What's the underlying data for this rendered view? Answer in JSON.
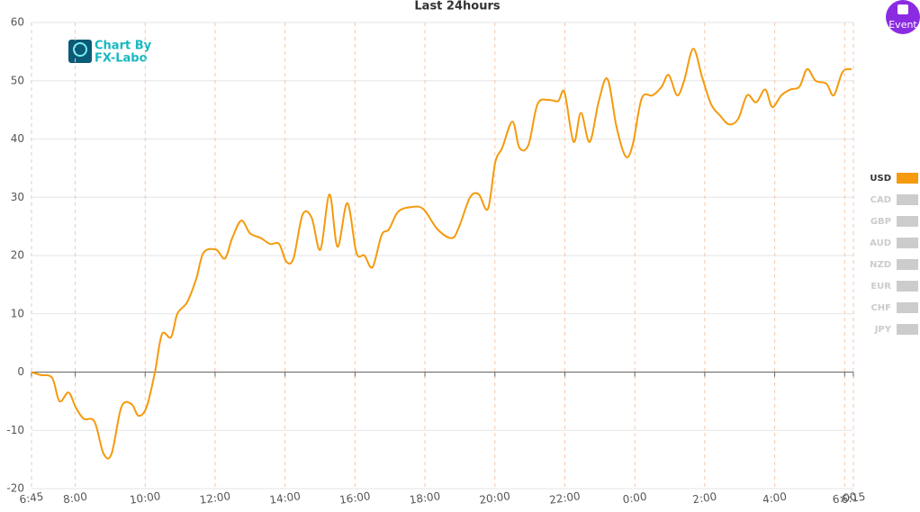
{
  "chart_data": {
    "type": "line",
    "title": "Last 24hours",
    "logo": [
      "Chart By",
      "FX-Labo"
    ],
    "button": "Event",
    "xlim": [
      0,
      23.5
    ],
    "xticks": [
      {
        "value": 0,
        "label": "6:45"
      },
      {
        "value": 1.25,
        "label": "8:00"
      },
      {
        "value": 3.25,
        "label": "10:00"
      },
      {
        "value": 5.25,
        "label": "12:00"
      },
      {
        "value": 7.25,
        "label": "14:00"
      },
      {
        "value": 9.25,
        "label": "16:00"
      },
      {
        "value": 11.25,
        "label": "18:00"
      },
      {
        "value": 13.25,
        "label": "20:00"
      },
      {
        "value": 15.25,
        "label": "22:00"
      },
      {
        "value": 17.25,
        "label": "0:00"
      },
      {
        "value": 19.25,
        "label": "2:00"
      },
      {
        "value": 21.25,
        "label": "4:00"
      },
      {
        "value": 23.25,
        "label": "6:00"
      },
      {
        "value": 23.5,
        "label": "6:15"
      }
    ],
    "ylim": [
      -20,
      60
    ],
    "yticks": [
      -20,
      -10,
      0,
      10,
      20,
      30,
      40,
      50,
      60
    ],
    "grid": true,
    "x": [
      0,
      0.26,
      0.59,
      0.8,
      1.06,
      1.26,
      1.49,
      1.8,
      2.06,
      2.29,
      2.57,
      2.86,
      3.06,
      3.29,
      3.53,
      3.73,
      3.99,
      4.17,
      4.45,
      4.71,
      4.92,
      5.28,
      5.53,
      5.74,
      6.0,
      6.25,
      6.56,
      6.82,
      7.08,
      7.28,
      7.49,
      7.75,
      8.01,
      8.26,
      8.52,
      8.75,
      9.03,
      9.29,
      9.52,
      9.75,
      10.01,
      10.22,
      10.48,
      10.84,
      11.2,
      11.61,
      12.02,
      12.23,
      12.54,
      12.79,
      13.05,
      13.26,
      13.46,
      13.75,
      13.95,
      14.21,
      14.47,
      14.8,
      15.06,
      15.24,
      15.5,
      15.71,
      15.96,
      16.22,
      16.47,
      16.73,
      16.99,
      17.19,
      17.45,
      17.76,
      18.02,
      18.22,
      18.46,
      18.66,
      18.92,
      19.18,
      19.43,
      19.69,
      19.95,
      20.21,
      20.46,
      20.72,
      20.98,
      21.18,
      21.44,
      21.7,
      21.96,
      22.18,
      22.42,
      22.73,
      22.94,
      23.19,
      23.45
    ],
    "series": [
      {
        "name": "USD",
        "color": "#f59a0c",
        "values": [
          0,
          -0.5,
          -1,
          -5,
          -3.5,
          -6,
          -8,
          -8.5,
          -14,
          -14,
          -6,
          -5.5,
          -7.5,
          -6,
          0,
          6.5,
          6,
          10,
          12,
          16,
          20.5,
          21,
          19.5,
          23,
          26,
          23.8,
          23,
          22,
          22,
          19,
          19.5,
          27,
          26.5,
          21,
          30.5,
          21.5,
          29,
          20.5,
          20,
          18,
          23.5,
          24.5,
          27.5,
          28.3,
          28,
          24.5,
          23,
          25,
          30,
          30.5,
          28,
          36,
          38.5,
          43,
          38.5,
          39,
          46,
          46.7,
          46.5,
          48,
          39.5,
          44.5,
          39.5,
          46.5,
          50.3,
          42,
          37,
          39,
          47,
          47.5,
          49,
          51,
          47.5,
          50,
          55.5,
          50.5,
          46,
          44,
          42.5,
          43.5,
          47.5,
          46.3,
          48.5,
          45.5,
          47.5,
          48.5,
          49,
          52,
          50,
          49.5,
          47.5,
          51.5,
          52
        ]
      }
    ],
    "inactive_legend": [
      "CAD",
      "GBP",
      "AUD",
      "NZD",
      "EUR",
      "CHF",
      "JPY"
    ],
    "inactive_color": "#cccccc"
  }
}
